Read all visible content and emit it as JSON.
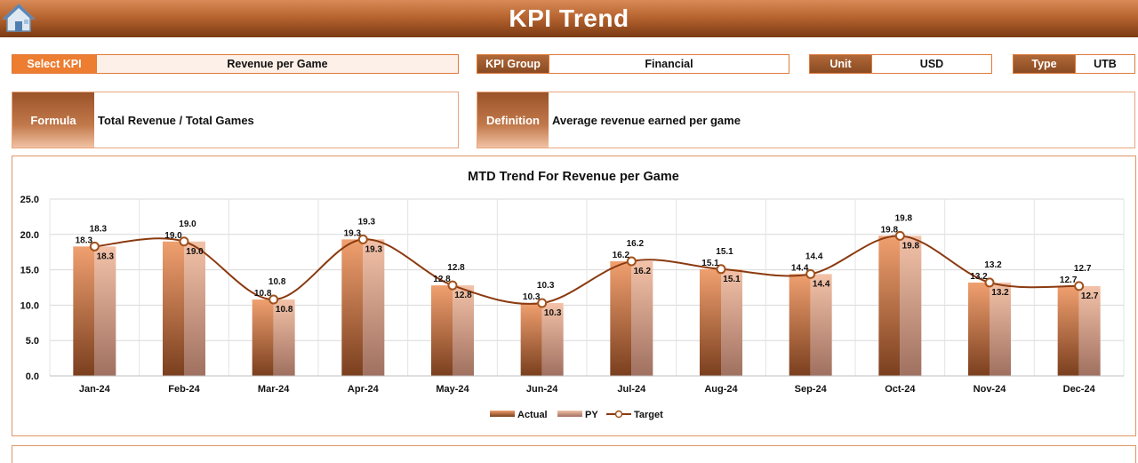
{
  "header": {
    "title": "KPI Trend",
    "home_icon": "home-icon"
  },
  "filters": {
    "select_kpi_label": "Select KPI",
    "select_kpi_value": "Revenue per Game",
    "kpi_group_label": "KPI Group",
    "kpi_group_value": "Financial",
    "unit_label": "Unit",
    "unit_value": "USD",
    "type_label": "Type",
    "type_value": "UTB"
  },
  "formula": {
    "label": "Formula",
    "value": "Total Revenue / Total Games"
  },
  "definition": {
    "label": "Definition",
    "value": "Average revenue earned per game"
  },
  "colors": {
    "accent": "#ed7d31",
    "brown": "#8b4513",
    "target_line": "#8b3a10"
  },
  "chart_data": {
    "type": "bar",
    "title": "MTD Trend For Revenue per Game",
    "categories": [
      "Jan-24",
      "Feb-24",
      "Mar-24",
      "Apr-24",
      "May-24",
      "Jun-24",
      "Jul-24",
      "Aug-24",
      "Sep-24",
      "Oct-24",
      "Nov-24",
      "Dec-24"
    ],
    "series": [
      {
        "name": "Actual",
        "kind": "bar",
        "values": [
          18.3,
          19.0,
          10.8,
          19.3,
          12.8,
          10.3,
          16.2,
          15.1,
          14.4,
          19.8,
          13.2,
          12.7
        ]
      },
      {
        "name": "PY",
        "kind": "bar",
        "values": [
          18.3,
          19.0,
          10.8,
          19.3,
          12.8,
          10.3,
          16.2,
          15.1,
          14.4,
          19.8,
          13.2,
          12.7
        ]
      },
      {
        "name": "Target",
        "kind": "line",
        "values": [
          18.3,
          19.0,
          10.8,
          19.3,
          12.8,
          10.3,
          16.2,
          15.1,
          14.4,
          19.8,
          13.2,
          12.7
        ]
      }
    ],
    "y_ticks": [
      "0.0",
      "5.0",
      "10.0",
      "15.0",
      "20.0",
      "25.0"
    ],
    "ylim": [
      0,
      25
    ],
    "grid": true,
    "legend_position": "bottom"
  }
}
